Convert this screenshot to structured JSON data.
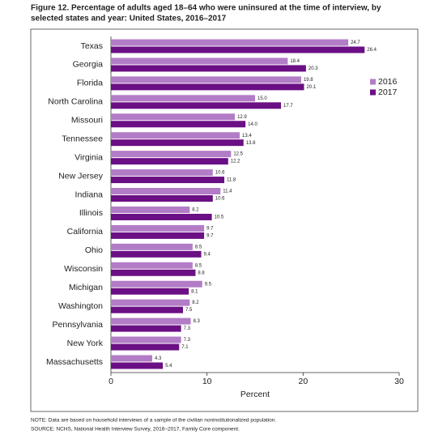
{
  "chart_data": {
    "type": "bar",
    "orientation": "horizontal",
    "title": "Figure 12. Percentage of adults aged 18–64 who were uninsured at the time of interview, by",
    "subtitle": "selected states and year: United States, 2016–2017",
    "categories": [
      "Texas",
      "Georgia",
      "Florida",
      "North Carolina",
      "Missouri",
      "Tennessee",
      "Virginia",
      "New Jersey",
      "Indiana",
      "Illinois",
      "California",
      "Ohio",
      "Wisconsin",
      "Michigan",
      "Washington",
      "Pennsylvania",
      "New York",
      "Massachusetts"
    ],
    "series": [
      {
        "name": "2016",
        "color": "#b27cc6",
        "values": [
          24.7,
          18.4,
          19.8,
          15.0,
          12.9,
          13.4,
          12.5,
          10.6,
          11.4,
          8.2,
          9.7,
          8.5,
          8.5,
          9.5,
          8.2,
          8.3,
          7.3,
          4.3
        ],
        "value_labels": [
          "24.7",
          "18.4",
          "19.8",
          "15.0",
          "12.9",
          "13.4",
          "12.5",
          "10.6",
          "11.4",
          "8.2",
          "9.7",
          "8.5",
          "8.5",
          "9.5",
          "8.2",
          "8.3",
          "7.3",
          "4.3"
        ]
      },
      {
        "name": "2017",
        "color": "#6b0f84",
        "values": [
          26.4,
          20.3,
          20.1,
          17.7,
          14.0,
          13.8,
          12.2,
          11.8,
          10.6,
          10.5,
          9.7,
          9.4,
          8.8,
          8.1,
          7.5,
          7.3,
          7.1,
          5.4
        ],
        "value_labels": [
          "26.4",
          "20.3",
          "20.1",
          "17.7",
          "14.0",
          "13.8",
          "12.2",
          "11.8",
          "10.6",
          "10.5",
          "9.7",
          "9.4",
          "8.8",
          "8.1",
          "7.5",
          "7.3",
          "7.1",
          "5.4"
        ]
      }
    ],
    "xlabel": "Percent",
    "xlim": [
      0,
      30
    ],
    "xticks": [
      0,
      10,
      20,
      30
    ],
    "grid": false,
    "legend": "upper right",
    "notes": [
      "NOTE: Data are based on household interviews of a sample of the civilian noninstitutionalized population.",
      "SOURCE: NCHS, National Health Interview Survey, 2016–2017, Family Core component."
    ]
  }
}
